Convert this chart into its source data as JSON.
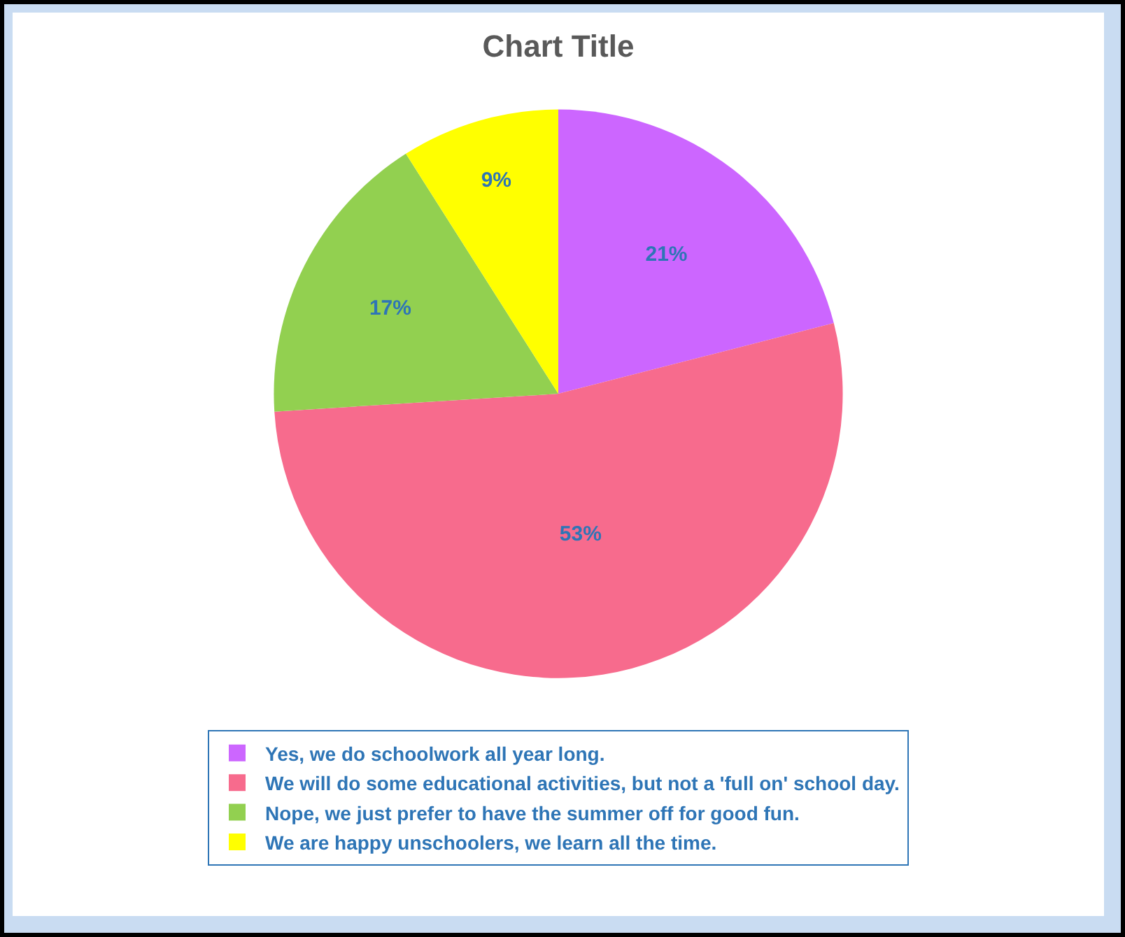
{
  "chart_data": {
    "type": "pie",
    "title": "Chart Title",
    "categories": [
      "Yes, we do schoolwork all year long.",
      "We will do some educational activities, but not a 'full on' school day.",
      "Nope, we just prefer to have the summer off for good fun.",
      "We are happy unschoolers, we learn all the time."
    ],
    "values": [
      21,
      53,
      17,
      9
    ],
    "value_labels": [
      "21%",
      "53%",
      "17%",
      "9%"
    ],
    "colors": [
      "#cc66ff",
      "#f76b8d",
      "#92d050",
      "#ffff00"
    ],
    "legend": "bottom"
  }
}
